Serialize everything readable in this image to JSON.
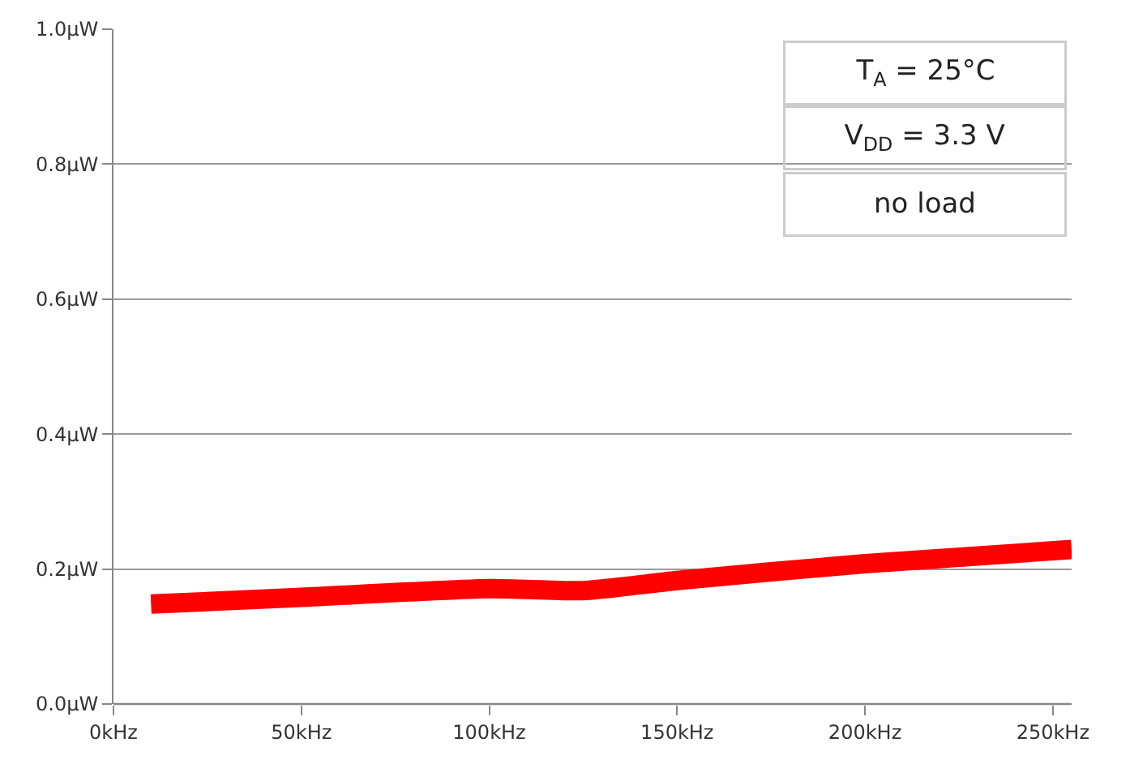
{
  "chart_data": {
    "type": "line",
    "x": [
      10,
      50,
      100,
      125,
      150,
      200,
      255
    ],
    "series": [
      {
        "color": "#ff0000",
        "values": [
          0.148,
          0.158,
          0.171,
          0.168,
          0.183,
          0.208,
          0.229
        ]
      }
    ],
    "xlim": [
      0,
      255
    ],
    "xticks": [
      {
        "value": 0,
        "label": "0kHz"
      },
      {
        "value": 50,
        "label": "50kHz"
      },
      {
        "value": 100,
        "label": "100kHz"
      },
      {
        "value": 150,
        "label": "150kHz"
      },
      {
        "value": 200,
        "label": "200kHz"
      },
      {
        "value": 250,
        "label": "250kHz"
      }
    ],
    "ylim": [
      0,
      1.0
    ],
    "yticks": [
      {
        "value": 0,
        "label": "0.0µW"
      },
      {
        "value": 0.2,
        "label": "0.2µW"
      },
      {
        "value": 0.4,
        "label": "0.4µW"
      },
      {
        "value": 0.6,
        "label": "0.6µW"
      },
      {
        "value": 0.8,
        "label": "0.8µW"
      },
      {
        "value": 1.0,
        "label": "1.0µW"
      }
    ],
    "grid": "y",
    "marker": "none",
    "line_style": "solid",
    "annotations": [
      "T$_{A}$ = 25°C",
      "V$_{DD}$ = 3.3 V",
      "no load"
    ]
  }
}
